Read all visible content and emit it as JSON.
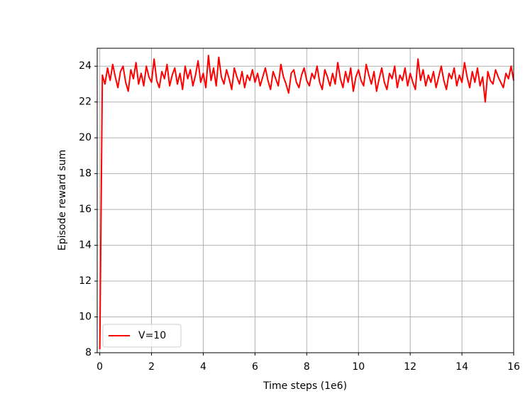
{
  "chart_data": {
    "type": "line",
    "xlabel": "Time steps (1e6)",
    "ylabel": "Episode reward sum",
    "x": [
      0,
      0.1,
      0.2,
      0.3,
      0.4,
      0.5,
      0.6,
      0.7,
      0.8,
      0.9,
      1,
      1.1,
      1.2,
      1.3,
      1.4,
      1.5,
      1.6,
      1.7,
      1.8,
      1.9,
      2,
      2.1,
      2.2,
      2.3,
      2.4,
      2.5,
      2.6,
      2.7,
      2.8,
      2.9,
      3,
      3.1,
      3.2,
      3.3,
      3.4,
      3.5,
      3.6,
      3.7,
      3.8,
      3.9,
      4,
      4.1,
      4.2,
      4.3,
      4.4,
      4.5,
      4.6,
      4.7,
      4.8,
      4.9,
      5,
      5.1,
      5.2,
      5.3,
      5.4,
      5.5,
      5.6,
      5.7,
      5.8,
      5.9,
      6,
      6.1,
      6.2,
      6.3,
      6.4,
      6.5,
      6.6,
      6.7,
      6.8,
      6.9,
      7,
      7.1,
      7.2,
      7.3,
      7.4,
      7.5,
      7.6,
      7.7,
      7.8,
      7.9,
      8,
      8.1,
      8.2,
      8.3,
      8.4,
      8.5,
      8.6,
      8.7,
      8.8,
      8.9,
      9,
      9.1,
      9.2,
      9.3,
      9.4,
      9.5,
      9.6,
      9.7,
      9.8,
      9.9,
      10,
      10.1,
      10.2,
      10.3,
      10.4,
      10.5,
      10.6,
      10.7,
      10.8,
      10.9,
      11,
      11.1,
      11.2,
      11.3,
      11.4,
      11.5,
      11.6,
      11.7,
      11.8,
      11.9,
      12,
      12.1,
      12.2,
      12.3,
      12.4,
      12.5,
      12.6,
      12.7,
      12.8,
      12.9,
      13,
      13.1,
      13.2,
      13.3,
      13.4,
      13.5,
      13.6,
      13.7,
      13.8,
      13.9,
      14,
      14.1,
      14.2,
      14.3,
      14.4,
      14.5,
      14.6,
      14.7,
      14.8,
      14.9,
      15,
      15.1,
      15.2,
      15.3,
      15.4,
      15.5,
      15.6,
      15.7,
      15.8,
      15.9,
      16
    ],
    "series": [
      {
        "name": "V=10",
        "color": "#ff0000",
        "values": [
          8.2,
          23.5,
          23.0,
          23.9,
          23.2,
          24.1,
          23.4,
          22.8,
          23.7,
          24.0,
          23.1,
          22.6,
          23.8,
          23.3,
          24.2,
          23.0,
          23.6,
          22.9,
          24.0,
          23.4,
          23.1,
          24.4,
          23.2,
          22.8,
          23.7,
          23.3,
          24.1,
          22.9,
          23.5,
          23.9,
          23.0,
          23.6,
          22.7,
          24.0,
          23.3,
          23.8,
          22.9,
          23.5,
          24.3,
          23.1,
          23.6,
          22.8,
          24.6,
          23.2,
          23.9,
          22.9,
          24.5,
          23.4,
          23.0,
          23.8,
          23.3,
          22.7,
          23.9,
          23.4,
          23.0,
          23.7,
          22.8,
          23.5,
          23.2,
          23.8,
          23.1,
          23.6,
          22.9,
          23.4,
          23.9,
          23.2,
          22.7,
          23.7,
          23.3,
          22.9,
          24.1,
          23.4,
          23.0,
          22.5,
          23.6,
          23.8,
          23.1,
          22.8,
          23.5,
          23.9,
          23.2,
          22.9,
          23.6,
          23.3,
          24.0,
          23.1,
          22.7,
          23.8,
          23.4,
          22.9,
          23.6,
          23.0,
          24.2,
          23.3,
          22.8,
          23.7,
          23.1,
          23.9,
          22.6,
          23.4,
          23.8,
          23.2,
          22.9,
          24.1,
          23.5,
          23.0,
          23.7,
          22.6,
          23.3,
          23.9,
          23.1,
          22.7,
          23.6,
          23.3,
          24.0,
          22.8,
          23.5,
          23.2,
          23.9,
          22.9,
          23.6,
          23.1,
          22.7,
          24.4,
          23.2,
          23.8,
          22.9,
          23.5,
          23.1,
          23.7,
          22.8,
          23.4,
          24.0,
          23.2,
          22.7,
          23.6,
          23.3,
          23.9,
          22.9,
          23.5,
          23.1,
          24.2,
          23.4,
          22.8,
          23.7,
          23.1,
          23.9,
          22.9,
          23.4,
          22.0,
          23.7,
          23.2,
          23.0,
          23.8,
          23.4,
          23.1,
          22.8,
          23.6,
          23.3,
          24.0,
          23.2
        ]
      }
    ],
    "xlim": [
      -0.1,
      16
    ],
    "ylim": [
      8,
      25
    ],
    "xticks": [
      0,
      2,
      4,
      6,
      8,
      10,
      12,
      14,
      16
    ],
    "yticks": [
      8,
      10,
      12,
      14,
      16,
      18,
      20,
      22,
      24
    ],
    "grid": true,
    "legend": "lower left"
  }
}
